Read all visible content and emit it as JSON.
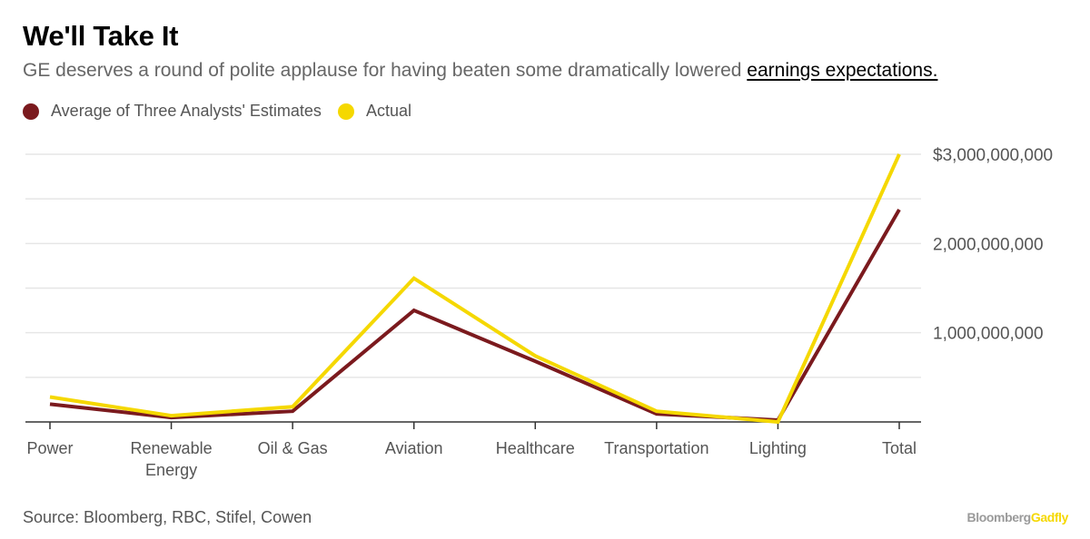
{
  "header": {
    "title": "We'll Take It",
    "subtitle_text": "GE deserves a round of polite applause for having beaten some dramatically lowered ",
    "subtitle_link": "earnings expectations."
  },
  "footer": {
    "source": "Source: Bloomberg, RBC, Stifel, Cowen",
    "brand_part1": "Bloomberg",
    "brand_part2": "Gadfly"
  },
  "chart_data": {
    "type": "line",
    "title": "We'll Take It",
    "subtitle": "GE deserves a round of polite applause for having beaten some dramatically lowered earnings expectations.",
    "xlabel": "",
    "ylabel": "",
    "categories": [
      [
        "Power"
      ],
      [
        "Renewable",
        "Energy"
      ],
      [
        "Oil & Gas"
      ],
      [
        "Aviation"
      ],
      [
        "Healthcare"
      ],
      [
        "Transportation"
      ],
      [
        "Lighting"
      ],
      [
        "Total"
      ]
    ],
    "series": [
      {
        "name": "Average of Three Analysts' Estimates",
        "color": "#7b1a1e",
        "values": [
          200000000,
          50000000,
          120000000,
          1250000000,
          680000000,
          90000000,
          20000000,
          2380000000
        ]
      },
      {
        "name": "Actual",
        "color": "#f5d800",
        "values": [
          280000000,
          70000000,
          170000000,
          1610000000,
          740000000,
          120000000,
          0,
          3000000000
        ]
      }
    ],
    "ylim": [
      0,
      3000000000
    ],
    "y_ticks": [
      {
        "value": 1000000000,
        "label": "1,000,000,000"
      },
      {
        "value": 2000000000,
        "label": "2,000,000,000"
      },
      {
        "value": 3000000000,
        "label": "$3,000,000,000"
      }
    ],
    "y_gridlines": [
      500000000,
      1000000000,
      1500000000,
      2000000000,
      2500000000,
      3000000000
    ],
    "y_axis_side": "right",
    "grid": true,
    "legend_position": "top-left",
    "gridline_color": "#e6e6e6",
    "axis_color": "#333333"
  }
}
